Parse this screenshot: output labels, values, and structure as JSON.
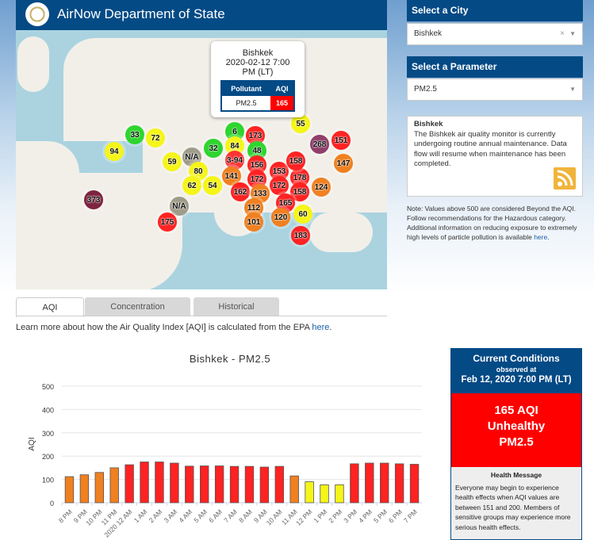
{
  "header": {
    "title": "AirNow Department of State"
  },
  "popup": {
    "city": "Bishkek",
    "datetime_line1": "2020-02-12 7:00",
    "datetime_line2": "PM (LT)",
    "col_pollutant": "Pollutant",
    "col_aqi": "AQI",
    "pollutant": "PM2.5",
    "aqi": "165"
  },
  "map_markers": [
    "33",
    "72",
    "94",
    "59",
    "N/A",
    "80",
    "62",
    "54",
    "32",
    "6",
    "84",
    "173",
    "3-94",
    "48",
    "156",
    "172",
    "153",
    "172",
    "178",
    "141",
    "162",
    "133",
    "112",
    "101",
    "55",
    "268",
    "151",
    "158",
    "147",
    "124",
    "158",
    "165",
    "120",
    "60",
    "183",
    "N/A",
    "175",
    "373"
  ],
  "sidebar": {
    "city_label": "Select a City",
    "city_value": "Bishkek",
    "param_label": "Select a Parameter",
    "param_value": "PM2.5",
    "clear": "×",
    "caret": "▼",
    "info_title": "Bishkek",
    "info_text": "The Bishkek air quality monitor is currently undergoing routine annual maintenance. Data flow will resume when maintenance has been completed.",
    "note": "Note: Values above 500 are considered Beyond the AQI. Follow recommendations for the Hazardous category. Additional information on reducing exposure to extremely high levels of particle pollution is available ",
    "note_link": "here",
    "note_end": "."
  },
  "tabs": [
    "AQI",
    "Concentration",
    "Historical"
  ],
  "learn": {
    "text": "Learn more about how the Air Quality Index [AQI] is calculated from the EPA ",
    "link": "here",
    "end": "."
  },
  "current": {
    "title": "Current Conditions",
    "observed": "observed at",
    "datetime": "Feb 12, 2020 7:00 PM (LT)",
    "aqi": "165 AQI",
    "category": "Unhealthy",
    "pollutant": "PM2.5",
    "health_title": "Health Message",
    "health_text": "Everyone may begin to experience health effects when AQI values are between 151 and 200. Members of sensitive groups may experience more serious health effects.",
    "color": "#ff0000"
  },
  "chart_data": {
    "type": "bar",
    "title": "Bishkek - PM2.5",
    "ylabel": "AQI",
    "xlabel": "",
    "ylim": [
      0,
      500
    ],
    "yticks": [
      0,
      100,
      200,
      300,
      400,
      500
    ],
    "grid": true,
    "categories": [
      "8 PM",
      "9 PM",
      "10 PM",
      "11 PM",
      "2020 12 AM",
      "1 AM",
      "2 AM",
      "3 AM",
      "4 AM",
      "5 AM",
      "6 AM",
      "7 AM",
      "8 AM",
      "9 AM",
      "10 AM",
      "11 AM",
      "12 PM",
      "1 PM",
      "2 PM",
      "3 PM",
      "4 PM",
      "5 PM",
      "6 PM",
      "7 PM"
    ],
    "values": [
      112,
      120,
      130,
      150,
      163,
      175,
      175,
      170,
      157,
      158,
      158,
      156,
      156,
      153,
      156,
      115,
      90,
      77,
      77,
      167,
      170,
      170,
      167,
      165
    ]
  }
}
